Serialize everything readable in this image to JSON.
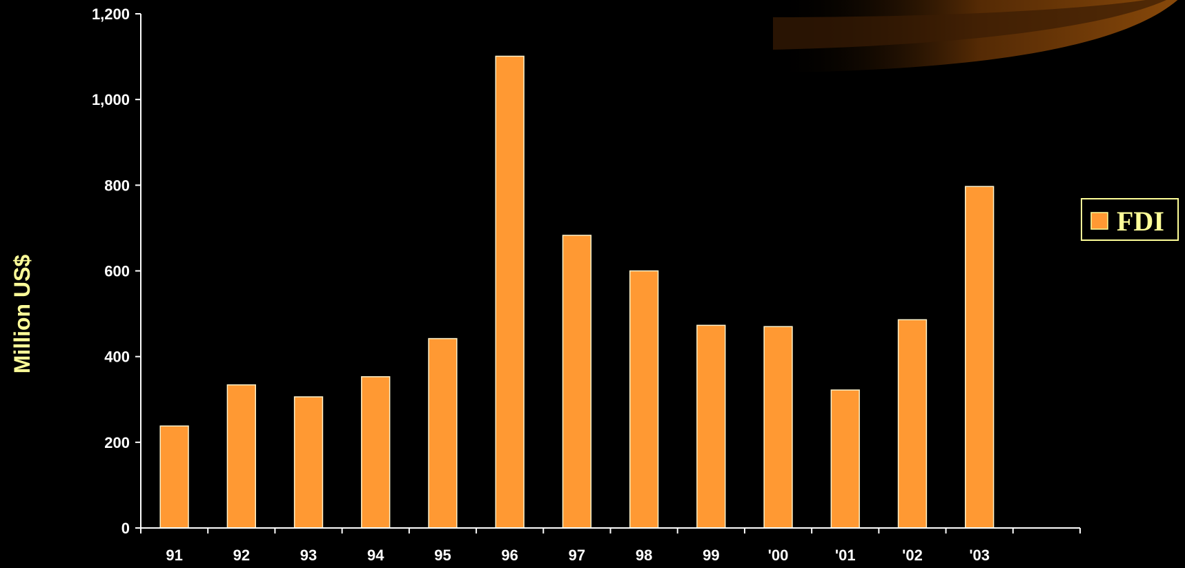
{
  "chart_data": {
    "type": "bar",
    "ylabel": "Million US$",
    "xlabel": "",
    "ylim": [
      0,
      1200
    ],
    "yticks": [
      0,
      200,
      400,
      600,
      800,
      1000,
      1200
    ],
    "ytick_labels": [
      "0",
      "200",
      "400",
      "600",
      "800",
      "1,000",
      "1,200"
    ],
    "categories": [
      "91",
      "92",
      "93",
      "94",
      "95",
      "96",
      "97",
      "98",
      "99",
      "'00",
      "'01",
      "'02",
      "'03"
    ],
    "series": [
      {
        "name": "FDI",
        "color": "#ff9933",
        "values": [
          238,
          334,
          306,
          353,
          442,
          1101,
          683,
          600,
          473,
          470,
          322,
          486,
          797
        ]
      }
    ],
    "legend": {
      "position": "right",
      "label": "FDI"
    },
    "grid": false,
    "background": "#000000"
  }
}
